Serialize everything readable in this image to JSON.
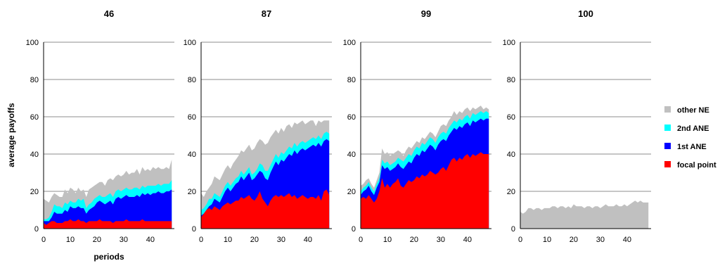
{
  "chart_data": {
    "type": "area",
    "stacked": true,
    "ylabel": "average payoffs",
    "xlabel": "periods",
    "ylim": [
      0,
      100
    ],
    "yticks": [
      0,
      20,
      40,
      60,
      80,
      100
    ],
    "xticks": [
      0,
      10,
      20,
      30,
      40
    ],
    "xlim": [
      0,
      49
    ],
    "grid": true,
    "legend": {
      "placement": "right",
      "entries": [
        {
          "name": "other NE",
          "color": "#c0c0c0"
        },
        {
          "name": "2nd ANE",
          "color": "#00ffff"
        },
        {
          "name": "1st ANE",
          "color": "#0000ff"
        },
        {
          "name": "focal point",
          "color": "#ff0000"
        }
      ]
    },
    "series_colors": {
      "focal_point": "#ff0000",
      "ane1": "#0000ff",
      "ane2": "#00ffff",
      "other_ne": "#c0c0c0"
    },
    "panels": [
      {
        "title": "46",
        "x": [
          0,
          1,
          2,
          3,
          4,
          5,
          6,
          7,
          8,
          9,
          10,
          11,
          12,
          13,
          14,
          15,
          16,
          17,
          18,
          19,
          20,
          21,
          22,
          23,
          24,
          25,
          26,
          27,
          28,
          29,
          30,
          31,
          32,
          33,
          34,
          35,
          36,
          37,
          38,
          39,
          40,
          41,
          42,
          43,
          44,
          45,
          46,
          47,
          48
        ],
        "cumulative": {
          "focal_point": [
            3,
            2,
            3,
            4,
            4,
            3,
            3,
            3,
            4,
            4,
            5,
            4,
            4,
            5,
            4,
            4,
            3,
            4,
            4,
            4,
            4,
            5,
            4,
            4,
            4,
            4,
            3,
            4,
            4,
            4,
            4,
            5,
            4,
            4,
            4,
            4,
            4,
            5,
            4,
            4,
            4,
            4,
            4,
            4,
            4,
            4,
            4,
            4,
            4
          ],
          "ane1": [
            4,
            4,
            4,
            6,
            9,
            8,
            8,
            8,
            10,
            9,
            12,
            11,
            11,
            12,
            11,
            11,
            8,
            10,
            11,
            12,
            14,
            15,
            14,
            13,
            14,
            15,
            13,
            16,
            17,
            16,
            17,
            18,
            17,
            17,
            17,
            18,
            17,
            19,
            18,
            19,
            18,
            19,
            19,
            20,
            19,
            19,
            20,
            20,
            21
          ],
          "ane2": [
            5,
            5,
            6,
            9,
            13,
            12,
            12,
            11,
            14,
            13,
            15,
            14,
            14,
            16,
            15,
            16,
            11,
            13,
            14,
            16,
            17,
            18,
            17,
            17,
            18,
            19,
            17,
            20,
            21,
            20,
            21,
            22,
            21,
            21,
            22,
            22,
            21,
            23,
            22,
            23,
            23,
            23,
            23,
            24,
            23,
            24,
            24,
            24,
            26
          ],
          "other_ne": [
            16,
            15,
            14,
            17,
            19,
            18,
            17,
            17,
            21,
            19,
            22,
            21,
            19,
            22,
            20,
            21,
            17,
            21,
            22,
            23,
            24,
            25,
            25,
            23,
            26,
            27,
            26,
            28,
            29,
            28,
            29,
            31,
            29,
            30,
            30,
            32,
            29,
            33,
            31,
            32,
            31,
            33,
            32,
            33,
            32,
            32,
            33,
            32,
            37
          ]
        }
      },
      {
        "title": "87",
        "x": [
          0,
          1,
          2,
          3,
          4,
          5,
          6,
          7,
          8,
          9,
          10,
          11,
          12,
          13,
          14,
          15,
          16,
          17,
          18,
          19,
          20,
          21,
          22,
          23,
          24,
          25,
          26,
          27,
          28,
          29,
          30,
          31,
          32,
          33,
          34,
          35,
          36,
          37,
          38,
          39,
          40,
          41,
          42,
          43,
          44,
          45,
          46,
          47,
          48
        ],
        "cumulative": {
          "focal_point": [
            6,
            8,
            10,
            11,
            10,
            12,
            11,
            10,
            12,
            13,
            14,
            13,
            14,
            15,
            15,
            17,
            16,
            17,
            18,
            16,
            15,
            17,
            20,
            16,
            14,
            12,
            15,
            17,
            18,
            17,
            18,
            17,
            18,
            19,
            17,
            18,
            16,
            17,
            18,
            17,
            16,
            17,
            17,
            16,
            18,
            15,
            20,
            21,
            18
          ],
          "ane1": [
            7,
            8,
            10,
            12,
            13,
            16,
            15,
            14,
            17,
            20,
            22,
            20,
            22,
            24,
            25,
            28,
            26,
            28,
            30,
            26,
            27,
            29,
            31,
            30,
            27,
            26,
            30,
            33,
            36,
            34,
            37,
            36,
            38,
            40,
            39,
            42,
            40,
            42,
            43,
            42,
            43,
            44,
            45,
            44,
            46,
            44,
            47,
            48,
            47
          ],
          "ane2": [
            10,
            11,
            13,
            16,
            16,
            19,
            18,
            17,
            20,
            23,
            25,
            23,
            25,
            27,
            28,
            31,
            29,
            31,
            33,
            29,
            30,
            32,
            35,
            34,
            31,
            31,
            34,
            37,
            40,
            38,
            41,
            40,
            42,
            44,
            43,
            46,
            44,
            46,
            47,
            46,
            47,
            48,
            49,
            48,
            50,
            48,
            51,
            52,
            51
          ],
          "other_ne": [
            19,
            17,
            20,
            22,
            24,
            28,
            27,
            26,
            29,
            32,
            34,
            32,
            35,
            37,
            39,
            42,
            41,
            43,
            45,
            42,
            43,
            46,
            48,
            47,
            45,
            46,
            49,
            51,
            53,
            51,
            54,
            52,
            55,
            56,
            54,
            57,
            56,
            57,
            58,
            56,
            57,
            58,
            58,
            55,
            58,
            57,
            58,
            58,
            58
          ]
        }
      },
      {
        "title": "99",
        "x": [
          0,
          1,
          2,
          3,
          4,
          5,
          6,
          7,
          8,
          9,
          10,
          11,
          12,
          13,
          14,
          15,
          16,
          17,
          18,
          19,
          20,
          21,
          22,
          23,
          24,
          25,
          26,
          27,
          28,
          29,
          30,
          31,
          32,
          33,
          34,
          35,
          36,
          37,
          38,
          39,
          40,
          41,
          42,
          43,
          44,
          45,
          46,
          47,
          48
        ],
        "cumulative": {
          "focal_point": [
            16,
            17,
            16,
            18,
            16,
            14,
            16,
            20,
            27,
            22,
            24,
            22,
            24,
            25,
            27,
            23,
            22,
            24,
            26,
            25,
            26,
            28,
            27,
            29,
            28,
            29,
            31,
            30,
            29,
            30,
            32,
            33,
            31,
            34,
            37,
            38,
            36,
            38,
            37,
            39,
            40,
            38,
            40,
            39,
            40,
            41,
            40,
            40,
            40
          ],
          "ane1": [
            18,
            20,
            21,
            23,
            20,
            18,
            22,
            25,
            34,
            32,
            33,
            31,
            32,
            33,
            35,
            33,
            32,
            34,
            36,
            35,
            38,
            40,
            39,
            42,
            41,
            43,
            45,
            44,
            42,
            45,
            47,
            48,
            47,
            50,
            52,
            54,
            53,
            55,
            54,
            56,
            57,
            55,
            58,
            57,
            58,
            59,
            58,
            59,
            59
          ],
          "ane2": [
            20,
            22,
            23,
            25,
            22,
            20,
            24,
            27,
            37,
            35,
            36,
            34,
            35,
            36,
            38,
            37,
            36,
            38,
            40,
            39,
            42,
            44,
            43,
            46,
            45,
            47,
            49,
            48,
            46,
            49,
            51,
            52,
            51,
            54,
            56,
            58,
            57,
            59,
            58,
            60,
            61,
            59,
            62,
            61,
            62,
            63,
            62,
            63,
            62
          ],
          "other_ne": [
            23,
            24,
            26,
            27,
            24,
            22,
            26,
            30,
            43,
            40,
            41,
            39,
            40,
            41,
            42,
            41,
            39,
            42,
            44,
            43,
            45,
            47,
            46,
            49,
            48,
            50,
            52,
            51,
            49,
            52,
            55,
            56,
            55,
            58,
            60,
            63,
            61,
            63,
            62,
            64,
            65,
            63,
            65,
            64,
            65,
            66,
            64,
            65,
            64
          ]
        }
      },
      {
        "title": "100",
        "x": [
          0,
          1,
          2,
          3,
          4,
          5,
          6,
          7,
          8,
          9,
          10,
          11,
          12,
          13,
          14,
          15,
          16,
          17,
          18,
          19,
          20,
          21,
          22,
          23,
          24,
          25,
          26,
          27,
          28,
          29,
          30,
          31,
          32,
          33,
          34,
          35,
          36,
          37,
          38,
          39,
          40,
          41,
          42,
          43,
          44,
          45,
          46,
          47,
          48
        ],
        "cumulative": {
          "focal_point": [
            0,
            0,
            0,
            0,
            0,
            0,
            0,
            0,
            0,
            0,
            0,
            0,
            0,
            0,
            0,
            0,
            0,
            0,
            0,
            0,
            0,
            0,
            0,
            0,
            0,
            0,
            0,
            0,
            0,
            0,
            0,
            0,
            0,
            0,
            0,
            0,
            0,
            0,
            0,
            0,
            0,
            0,
            0,
            0,
            0,
            0,
            0,
            0,
            0
          ],
          "ane1": [
            0,
            0,
            0,
            0,
            0,
            0,
            0,
            0,
            0,
            0,
            0,
            0,
            0,
            0,
            0,
            0,
            0,
            0,
            0,
            0,
            0,
            0,
            0,
            0,
            0,
            0,
            0,
            0,
            0,
            0,
            0,
            0,
            0,
            0,
            0,
            0,
            0,
            0,
            0,
            0,
            0,
            0,
            0,
            0,
            0,
            0,
            0,
            0,
            0
          ],
          "ane2": [
            0,
            0,
            0,
            0,
            0,
            0,
            0,
            0,
            0,
            0,
            0,
            0,
            0,
            0,
            0,
            0,
            0,
            0,
            0,
            0,
            0,
            0,
            0,
            0,
            0,
            0,
            0,
            0,
            0,
            0,
            0,
            0,
            0,
            0,
            0,
            0,
            0,
            0,
            0,
            0,
            0,
            0,
            0,
            0,
            0,
            0,
            0,
            0,
            0
          ],
          "other_ne": [
            9,
            8,
            9,
            11,
            11,
            10,
            11,
            11,
            10,
            11,
            11,
            11,
            12,
            12,
            11,
            12,
            12,
            11,
            12,
            11,
            13,
            12,
            12,
            12,
            11,
            12,
            12,
            11,
            12,
            12,
            11,
            12,
            13,
            12,
            12,
            12,
            13,
            12,
            12,
            13,
            12,
            13,
            14,
            15,
            14,
            15,
            14,
            14,
            14
          ]
        }
      }
    ]
  }
}
